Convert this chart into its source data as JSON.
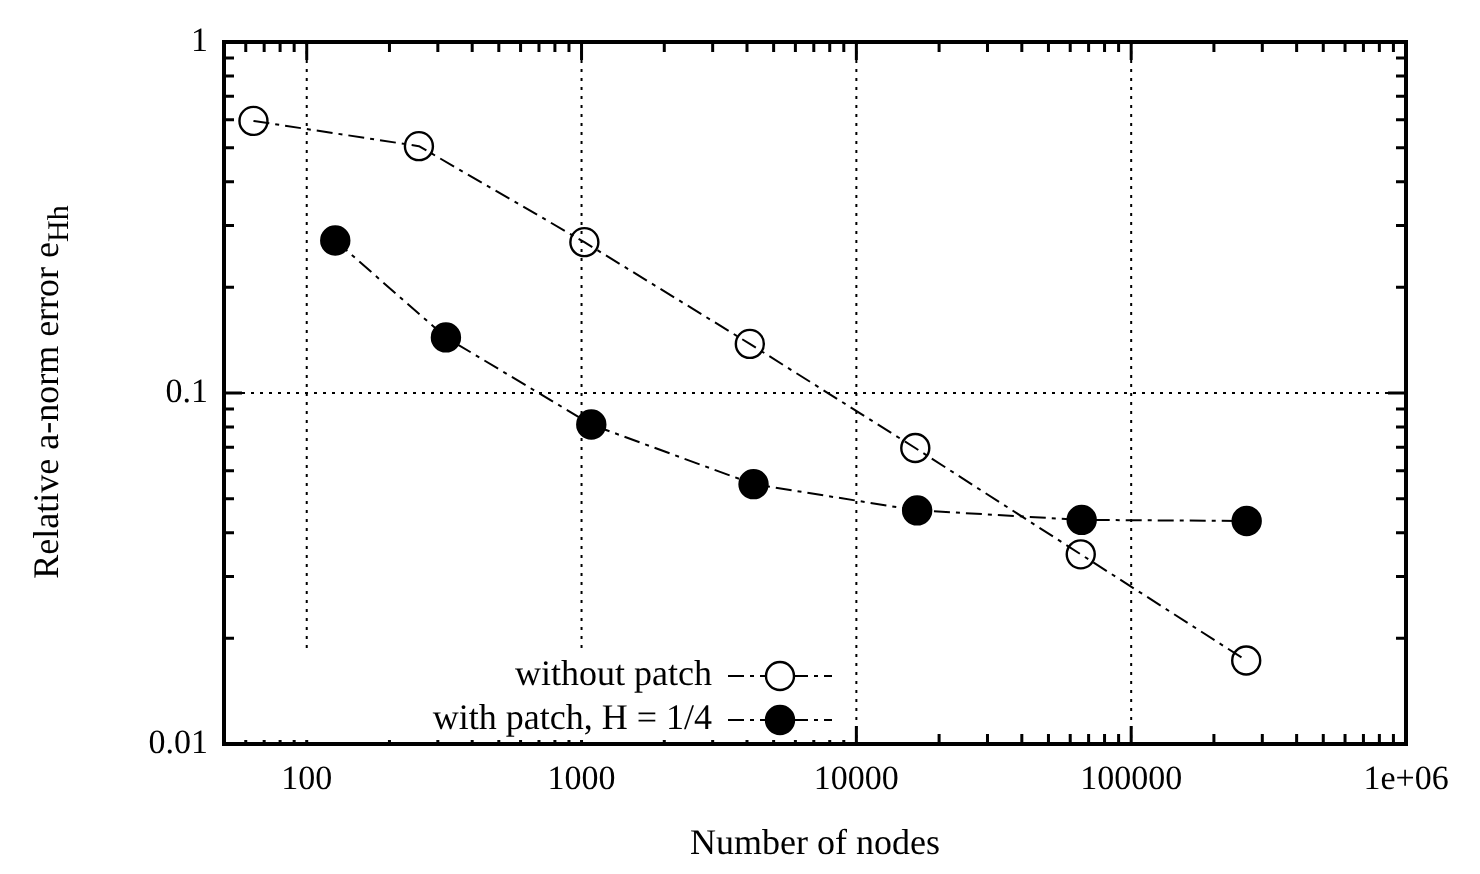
{
  "chart_data": {
    "type": "line",
    "xlabel": "Number of nodes",
    "ylabel": "Relative a-norm error e$_{Hh}$",
    "log": "xy",
    "grid": true,
    "legend": "bottom left",
    "marker": "circle",
    "line_style": "dashed",
    "xlim": [
      50,
      1000000
    ],
    "xticks": [
      {
        "value": 60,
        "label": null
      },
      {
        "value": 70,
        "label": null
      },
      {
        "value": 80,
        "label": null
      },
      {
        "value": 90,
        "label": null
      },
      100,
      {
        "value": 200,
        "label": null
      },
      {
        "value": 300,
        "label": null
      },
      {
        "value": 400,
        "label": null
      },
      {
        "value": 500,
        "label": null
      },
      {
        "value": 600,
        "label": null
      },
      {
        "value": 700,
        "label": null
      },
      {
        "value": 800,
        "label": null
      },
      {
        "value": 900,
        "label": null
      },
      1000,
      {
        "value": 2000,
        "label": null
      },
      {
        "value": 3000,
        "label": null
      },
      {
        "value": 4000,
        "label": null
      },
      {
        "value": 5000,
        "label": null
      },
      {
        "value": 6000,
        "label": null
      },
      {
        "value": 7000,
        "label": null
      },
      {
        "value": 8000,
        "label": null
      },
      {
        "value": 9000,
        "label": null
      },
      10000,
      {
        "value": 20000,
        "label": null
      },
      {
        "value": 30000,
        "label": null
      },
      {
        "value": 40000,
        "label": null
      },
      {
        "value": 50000,
        "label": null
      },
      {
        "value": 60000,
        "label": null
      },
      {
        "value": 70000,
        "label": null
      },
      {
        "value": 80000,
        "label": null
      },
      {
        "value": 90000,
        "label": null
      },
      100000,
      {
        "value": 200000,
        "label": null
      },
      {
        "value": 300000,
        "label": null
      },
      {
        "value": 400000,
        "label": null
      },
      {
        "value": 500000,
        "label": null
      },
      {
        "value": 600000,
        "label": null
      },
      {
        "value": 700000,
        "label": null
      },
      {
        "value": 800000,
        "label": null
      },
      {
        "value": 900000,
        "label": null
      },
      {
        "value": 1000000,
        "label": "1e+06"
      }
    ],
    "ylim": [
      0.01,
      1
    ],
    "yticks": [
      0.01,
      {
        "value": 0.02,
        "label": null
      },
      {
        "value": 0.03,
        "label": null
      },
      {
        "value": 0.04,
        "label": null
      },
      {
        "value": 0.05,
        "label": null
      },
      {
        "value": 0.06,
        "label": null
      },
      {
        "value": 0.07,
        "label": null
      },
      {
        "value": 0.08,
        "label": null
      },
      {
        "value": 0.09,
        "label": null
      },
      0.1,
      {
        "value": 0.2,
        "label": null
      },
      {
        "value": 0.3,
        "label": null
      },
      {
        "value": 0.4,
        "label": null
      },
      {
        "value": 0.5,
        "label": null
      },
      {
        "value": 0.6,
        "label": null
      },
      {
        "value": 0.7,
        "label": null
      },
      {
        "value": 0.8,
        "label": null
      },
      {
        "value": 0.9,
        "label": null
      },
      1
    ],
    "series": [
      {
        "name": "without patch",
        "color": "#000000",
        "x": [
          64,
          256,
          1024,
          4096,
          16384,
          65536,
          262144
        ],
        "values": [
          0.596,
          0.505,
          0.269,
          0.138,
          0.0697,
          0.0347,
          0.0173
        ]
      },
      {
        "name": "with patch, H = 1/4",
        "color": "#000000",
        "x": [
          127,
          321,
          1085,
          4225,
          16641,
          66049,
          263169
        ],
        "values": [
          0.272,
          0.144,
          0.0813,
          0.055,
          0.0463,
          0.0435,
          0.0432
        ]
      }
    ]
  }
}
